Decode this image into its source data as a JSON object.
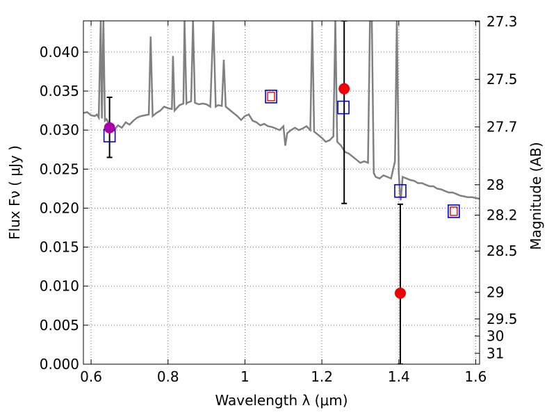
{
  "chart_data": {
    "type": "scatter",
    "title": "",
    "xlabel": "Wavelength  λ (μm)",
    "ylabel": "Flux  Fν  ( μJy )",
    "y2label": "Magnitude (AB)",
    "xlim": [
      0.58,
      1.61
    ],
    "ylim": [
      0.0,
      0.044
    ],
    "x_ticks": [
      0.6,
      0.8,
      1.0,
      1.2,
      1.4,
      1.6
    ],
    "x_tick_labels": [
      "0.6",
      "0.8",
      "1",
      "1.2",
      "1.4",
      "1.6"
    ],
    "y_ticks": [
      0.0,
      0.005,
      0.01,
      0.015,
      0.02,
      0.025,
      0.03,
      0.035,
      0.04
    ],
    "y_tick_labels": [
      "0.000",
      "0.005",
      "0.010",
      "0.015",
      "0.020",
      "0.025",
      "0.030",
      "0.035",
      "0.040"
    ],
    "y2_ticks": [
      {
        "label": "27.3",
        "flux": 0.0439
      },
      {
        "label": "27.5",
        "flux": 0.0365
      },
      {
        "label": "27.7",
        "flux": 0.0304
      },
      {
        "label": "28",
        "flux": 0.023
      },
      {
        "label": "28.2",
        "flux": 0.0191
      },
      {
        "label": "28.5",
        "flux": 0.0145
      },
      {
        "label": "29",
        "flux": 0.0092
      },
      {
        "label": "29.5",
        "flux": 0.0058
      },
      {
        "label": "30",
        "flux": 0.0036
      },
      {
        "label": "31",
        "flux": 0.0014
      }
    ],
    "grid": true,
    "colors": {
      "spectrum": "#808080",
      "observed": "#ee0000",
      "observed_overlap": "#aa00aa",
      "model": "#0000dd",
      "model_inner": "#ee0000",
      "errorbar": "#000000"
    },
    "series": [
      {
        "kind": "spectrum",
        "points": [
          [
            0.58,
            0.0322
          ],
          [
            0.59,
            0.0323
          ],
          [
            0.6,
            0.0319
          ],
          [
            0.61,
            0.0318
          ],
          [
            0.615,
            0.032
          ],
          [
            0.62,
            0.0316
          ],
          [
            0.625,
            0.044
          ],
          [
            0.628,
            0.0315
          ],
          [
            0.632,
            0.044
          ],
          [
            0.636,
            0.0312
          ],
          [
            0.64,
            0.0314
          ],
          [
            0.65,
            0.0305
          ],
          [
            0.66,
            0.03
          ],
          [
            0.67,
            0.0306
          ],
          [
            0.68,
            0.0303
          ],
          [
            0.69,
            0.031
          ],
          [
            0.7,
            0.0307
          ],
          [
            0.71,
            0.0312
          ],
          [
            0.72,
            0.0316
          ],
          [
            0.73,
            0.0318
          ],
          [
            0.74,
            0.0319
          ],
          [
            0.75,
            0.032
          ],
          [
            0.755,
            0.042
          ],
          [
            0.76,
            0.0318
          ],
          [
            0.77,
            0.0322
          ],
          [
            0.78,
            0.0325
          ],
          [
            0.79,
            0.033
          ],
          [
            0.8,
            0.0328
          ],
          [
            0.81,
            0.0327
          ],
          [
            0.813,
            0.0395
          ],
          [
            0.817,
            0.0325
          ],
          [
            0.83,
            0.0332
          ],
          [
            0.84,
            0.0334
          ],
          [
            0.843,
            0.044
          ],
          [
            0.848,
            0.0334
          ],
          [
            0.85,
            0.0335
          ],
          [
            0.86,
            0.0337
          ],
          [
            0.865,
            0.044
          ],
          [
            0.87,
            0.0335
          ],
          [
            0.88,
            0.0333
          ],
          [
            0.89,
            0.0334
          ],
          [
            0.9,
            0.0333
          ],
          [
            0.91,
            0.033
          ],
          [
            0.918,
            0.044
          ],
          [
            0.924,
            0.033
          ],
          [
            0.93,
            0.0332
          ],
          [
            0.94,
            0.0331
          ],
          [
            0.945,
            0.039
          ],
          [
            0.95,
            0.033
          ],
          [
            0.96,
            0.0326
          ],
          [
            0.97,
            0.0322
          ],
          [
            0.98,
            0.0318
          ],
          [
            0.99,
            0.0313
          ],
          [
            1.0,
            0.0318
          ],
          [
            1.01,
            0.032
          ],
          [
            1.02,
            0.0312
          ],
          [
            1.03,
            0.031
          ],
          [
            1.04,
            0.0306
          ],
          [
            1.05,
            0.0308
          ],
          [
            1.06,
            0.0305
          ],
          [
            1.07,
            0.0304
          ],
          [
            1.08,
            0.0302
          ],
          [
            1.09,
            0.03
          ],
          [
            1.1,
            0.0305
          ],
          [
            1.105,
            0.028
          ],
          [
            1.11,
            0.0296
          ],
          [
            1.12,
            0.03
          ],
          [
            1.13,
            0.0303
          ],
          [
            1.14,
            0.03
          ],
          [
            1.15,
            0.0302
          ],
          [
            1.16,
            0.0305
          ],
          [
            1.17,
            0.03
          ],
          [
            1.175,
            0.044
          ],
          [
            1.18,
            0.0298
          ],
          [
            1.19,
            0.0294
          ],
          [
            1.2,
            0.029
          ],
          [
            1.21,
            0.0285
          ],
          [
            1.22,
            0.0287
          ],
          [
            1.23,
            0.0292
          ],
          [
            1.235,
            0.044
          ],
          [
            1.24,
            0.0285
          ],
          [
            1.25,
            0.028
          ],
          [
            1.26,
            0.0272
          ],
          [
            1.27,
            0.027
          ],
          [
            1.28,
            0.0266
          ],
          [
            1.29,
            0.0262
          ],
          [
            1.3,
            0.0258
          ],
          [
            1.31,
            0.026
          ],
          [
            1.32,
            0.0258
          ],
          [
            1.325,
            0.044
          ],
          [
            1.33,
            0.044
          ],
          [
            1.335,
            0.0245
          ],
          [
            1.34,
            0.024
          ],
          [
            1.35,
            0.0238
          ],
          [
            1.36,
            0.0242
          ],
          [
            1.37,
            0.024
          ],
          [
            1.38,
            0.0238
          ],
          [
            1.39,
            0.026
          ],
          [
            1.395,
            0.044
          ],
          [
            1.4,
            0.0245
          ],
          [
            1.403,
            0.022
          ],
          [
            1.405,
            0.021
          ],
          [
            1.41,
            0.024
          ],
          [
            1.42,
            0.0238
          ],
          [
            1.43,
            0.0236
          ],
          [
            1.44,
            0.0235
          ],
          [
            1.45,
            0.0232
          ],
          [
            1.46,
            0.0232
          ],
          [
            1.47,
            0.023
          ],
          [
            1.48,
            0.0228
          ],
          [
            1.49,
            0.0228
          ],
          [
            1.5,
            0.0225
          ],
          [
            1.51,
            0.0224
          ],
          [
            1.52,
            0.0222
          ],
          [
            1.53,
            0.022
          ],
          [
            1.54,
            0.022
          ],
          [
            1.55,
            0.0218
          ],
          [
            1.56,
            0.0216
          ],
          [
            1.57,
            0.0215
          ],
          [
            1.58,
            0.0214
          ],
          [
            1.59,
            0.0214
          ],
          [
            1.6,
            0.0213
          ],
          [
            1.61,
            0.0212
          ]
        ]
      },
      {
        "kind": "observed",
        "points": [
          {
            "x": 0.648,
            "y": 0.0303,
            "yerr_low": 0.0265,
            "yerr_high": 0.0342,
            "overlap": true
          },
          {
            "x": 1.258,
            "y": 0.0353,
            "yerr_low": 0.0206,
            "yerr_high": 0.044,
            "overlap": false
          },
          {
            "x": 1.404,
            "y": 0.0091,
            "yerr_low": 0.0,
            "yerr_high": 0.0205,
            "overlap": false
          }
        ]
      },
      {
        "kind": "model",
        "points": [
          {
            "x": 0.648,
            "y": 0.0293,
            "inner": false
          },
          {
            "x": 1.068,
            "y": 0.0343,
            "inner": true
          },
          {
            "x": 1.256,
            "y": 0.0329,
            "inner": false
          },
          {
            "x": 1.404,
            "y": 0.0222,
            "inner": false
          },
          {
            "x": 1.543,
            "y": 0.0196,
            "inner": true
          }
        ]
      }
    ]
  }
}
